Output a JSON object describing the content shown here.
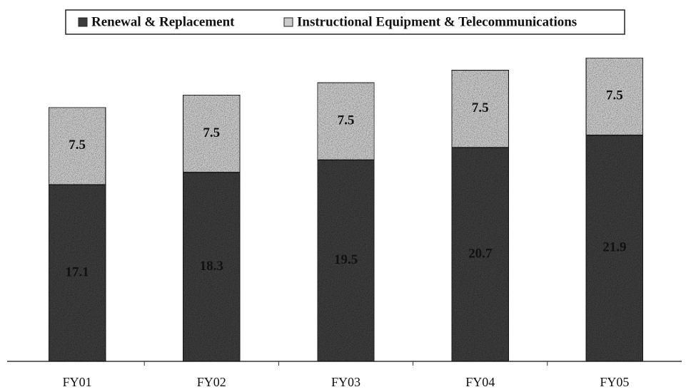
{
  "chart_data": {
    "type": "stacked_bar",
    "categories": [
      "FY01",
      "FY02",
      "FY03",
      "FY04",
      "FY05"
    ],
    "series": [
      {
        "name": "Renewal & Replacement",
        "color": "#3d3d3d",
        "values": [
          17.1,
          18.3,
          19.5,
          20.7,
          21.9
        ]
      },
      {
        "name": "Instructional Equipment & Telecommunications",
        "color": "#cbcbcb",
        "values": [
          7.5,
          7.5,
          7.5,
          7.5,
          7.5
        ]
      }
    ],
    "legend": "top"
  }
}
